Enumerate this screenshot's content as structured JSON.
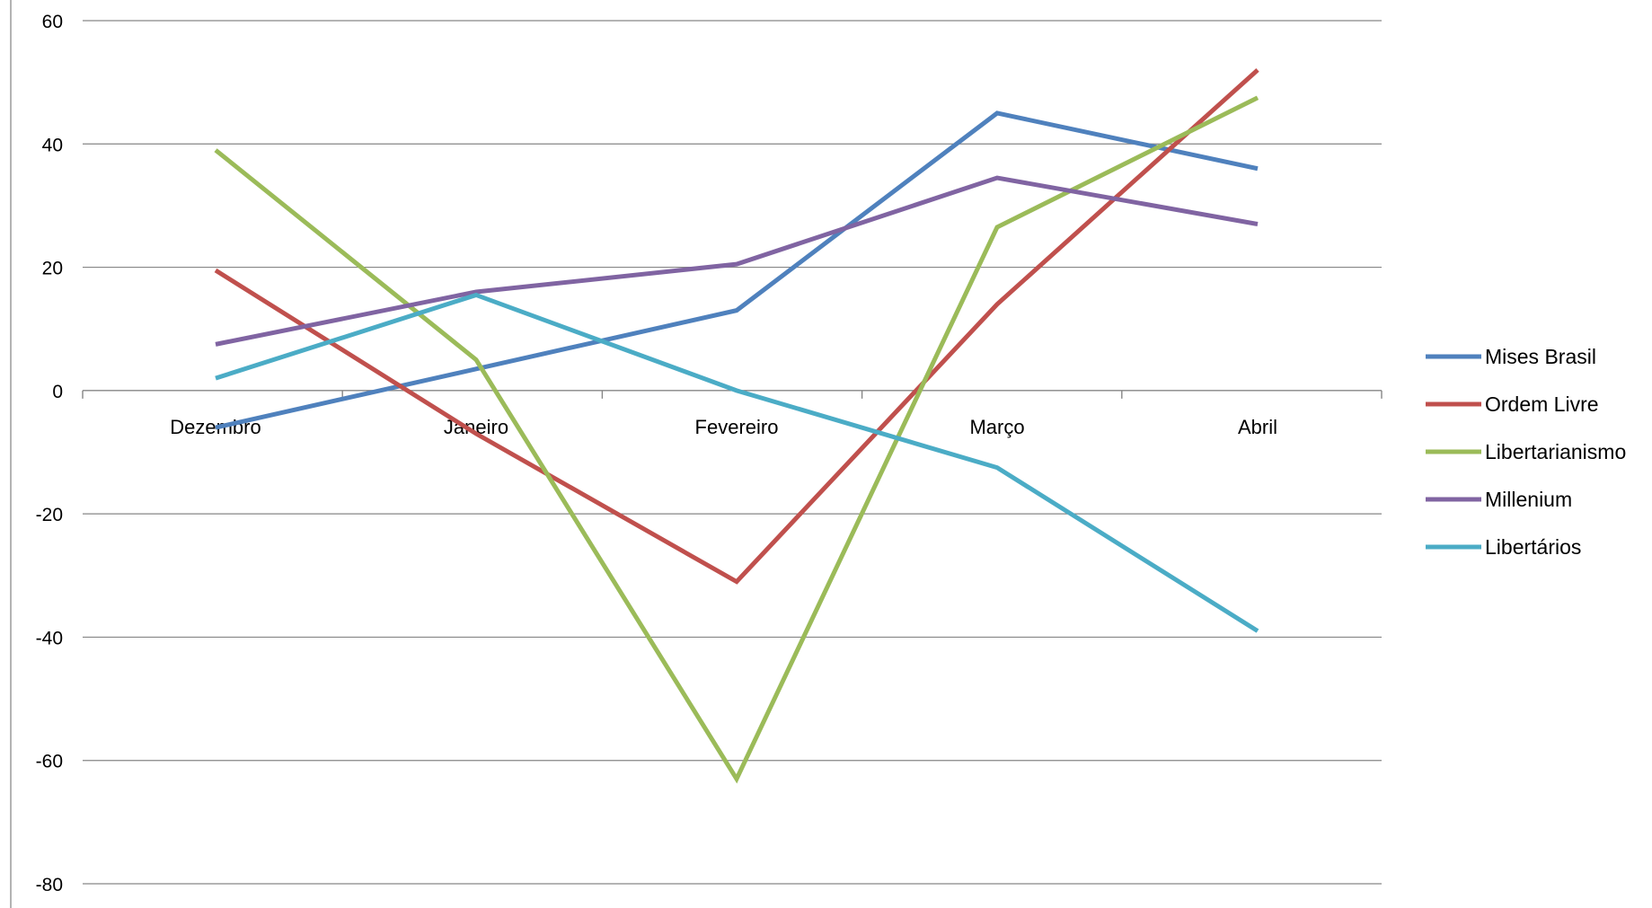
{
  "chart_data": {
    "type": "line",
    "title": "",
    "xlabel": "",
    "ylabel": "",
    "categories": [
      "Dezembro",
      "Janeiro",
      "Fevereiro",
      "Março",
      "Abril"
    ],
    "ylim": [
      -80,
      60
    ],
    "yticks": [
      60,
      40,
      20,
      0,
      -20,
      -40,
      -60,
      -80
    ],
    "grid": true,
    "legend_position": "right",
    "series": [
      {
        "name": "Mises Brasil",
        "color": "#4F81BD",
        "values": [
          -6,
          3.5,
          13,
          45,
          36
        ]
      },
      {
        "name": "Ordem Livre",
        "color": "#C0504D",
        "values": [
          19.5,
          -7,
          -31,
          14,
          52
        ]
      },
      {
        "name": "Libertarianismo",
        "color": "#9BBB59",
        "values": [
          39,
          5,
          -63,
          26.5,
          47.5
        ]
      },
      {
        "name": "Millenium",
        "color": "#8064A2",
        "values": [
          7.5,
          16,
          20.5,
          34.5,
          27
        ]
      },
      {
        "name": "Libertários",
        "color": "#4BACC6",
        "values": [
          2,
          15.5,
          0,
          -12.5,
          -39
        ]
      }
    ]
  }
}
